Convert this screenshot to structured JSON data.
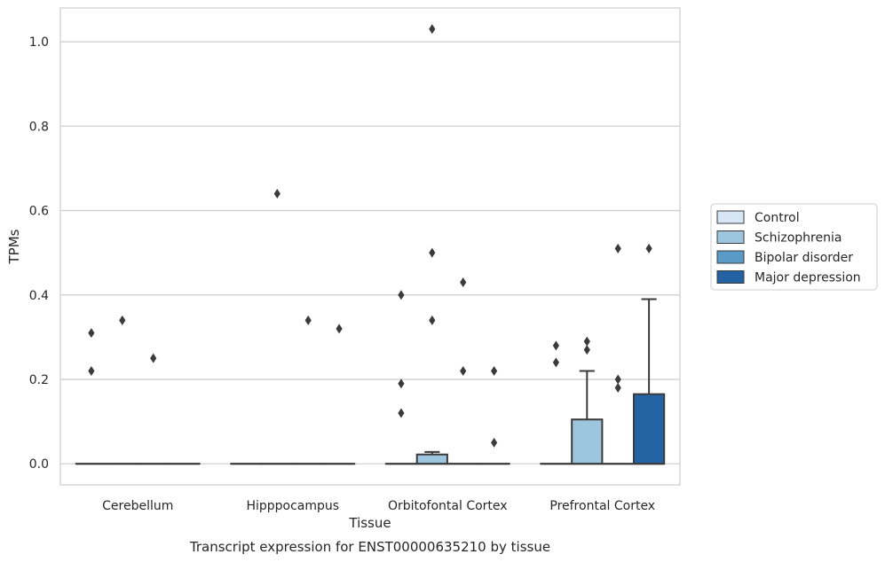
{
  "chart_data": {
    "type": "box",
    "title": "",
    "caption": "Transcript expression for ENST00000635210 by tissue",
    "xlabel": "Tissue",
    "ylabel": "TPMs",
    "ylim": [
      -0.05,
      1.08
    ],
    "yticks": [
      0.0,
      0.2,
      0.4,
      0.6,
      0.8,
      1.0
    ],
    "ytick_labels": [
      "0.0",
      "0.2",
      "0.4",
      "0.6",
      "0.8",
      "1.0"
    ],
    "categories": [
      "Cerebellum",
      "Hipppocampus",
      "Orbitofontal Cortex",
      "Prefrontal Cortex"
    ],
    "grid": "horizontal",
    "legend_position": "right",
    "series": [
      {
        "name": "Control",
        "color": "#d6e6f4",
        "boxes": [
          {
            "q1": 0,
            "median": 0,
            "q3": 0,
            "whisker_low": 0,
            "whisker_high": 0,
            "outliers": [
              0.22,
              0.31
            ]
          },
          {
            "q1": 0,
            "median": 0,
            "q3": 0,
            "whisker_low": 0,
            "whisker_high": 0,
            "outliers": []
          },
          {
            "q1": 0,
            "median": 0,
            "q3": 0,
            "whisker_low": 0,
            "whisker_high": 0,
            "outliers": [
              0.12,
              0.19,
              0.4
            ]
          },
          {
            "q1": 0,
            "median": 0,
            "q3": 0,
            "whisker_low": 0,
            "whisker_high": 0,
            "outliers": [
              0.24,
              0.28
            ]
          }
        ]
      },
      {
        "name": "Schizophrenia",
        "color": "#9dc5de",
        "boxes": [
          {
            "q1": 0,
            "median": 0,
            "q3": 0,
            "whisker_low": 0,
            "whisker_high": 0,
            "outliers": [
              0.34
            ]
          },
          {
            "q1": 0,
            "median": 0,
            "q3": 0,
            "whisker_low": 0,
            "whisker_high": 0,
            "outliers": [
              0.64
            ]
          },
          {
            "q1": 0,
            "median": 0,
            "q3": 0.022,
            "whisker_low": 0,
            "whisker_high": 0.028,
            "outliers": [
              0.34,
              0.5,
              1.03
            ]
          },
          {
            "q1": 0,
            "median": 0,
            "q3": 0.105,
            "whisker_low": 0,
            "whisker_high": 0.22,
            "outliers": [
              0.27,
              0.29
            ]
          }
        ]
      },
      {
        "name": "Bipolar disorder",
        "color": "#5a9ac7",
        "boxes": [
          {
            "q1": 0,
            "median": 0,
            "q3": 0,
            "whisker_low": 0,
            "whisker_high": 0,
            "outliers": [
              0.25
            ]
          },
          {
            "q1": 0,
            "median": 0,
            "q3": 0,
            "whisker_low": 0,
            "whisker_high": 0,
            "outliers": [
              0.34
            ]
          },
          {
            "q1": 0,
            "median": 0,
            "q3": 0,
            "whisker_low": 0,
            "whisker_high": 0,
            "outliers": [
              0.22,
              0.43
            ]
          },
          {
            "q1": 0,
            "median": 0,
            "q3": 0,
            "whisker_low": 0,
            "whisker_high": 0,
            "outliers": [
              0.18,
              0.2,
              0.51
            ]
          }
        ]
      },
      {
        "name": "Major depression",
        "color": "#2362a3",
        "boxes": [
          {
            "q1": 0,
            "median": 0,
            "q3": 0,
            "whisker_low": 0,
            "whisker_high": 0,
            "outliers": []
          },
          {
            "q1": 0,
            "median": 0,
            "q3": 0,
            "whisker_low": 0,
            "whisker_high": 0,
            "outliers": [
              0.32
            ]
          },
          {
            "q1": 0,
            "median": 0,
            "q3": 0,
            "whisker_low": 0,
            "whisker_high": 0,
            "outliers": [
              0.05,
              0.22
            ]
          },
          {
            "q1": 0,
            "median": 0,
            "q3": 0.165,
            "whisker_low": 0,
            "whisker_high": 0.39,
            "outliers": [
              0.51
            ]
          }
        ]
      }
    ]
  }
}
